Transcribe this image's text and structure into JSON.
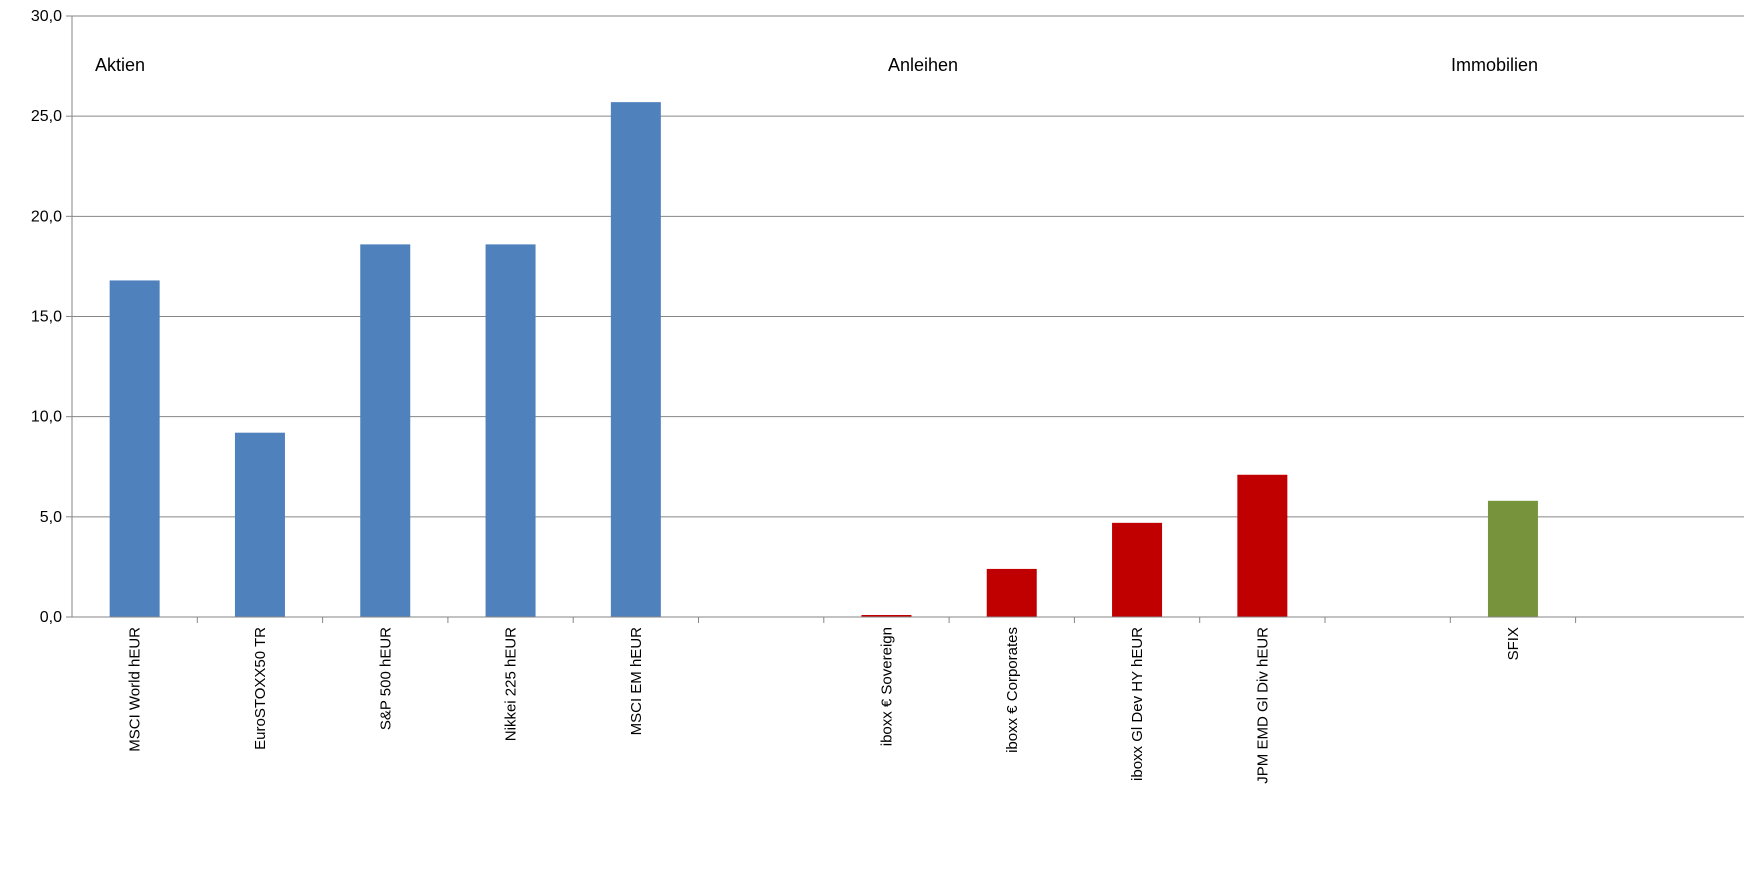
{
  "chart_data": {
    "type": "bar",
    "categories": [
      "MSCI World hEUR",
      "EuroSTOXX50 TR",
      "S&P 500 hEUR",
      "Nikkei 225 hEUR",
      "MSCI EM hEUR",
      "",
      "iboxx € Sovereign",
      "iboxx € Corporates",
      "iboxx Gl Dev HY hEUR",
      "JPM EMD Gl Div hEUR",
      "",
      "SFIX"
    ],
    "values": [
      16.8,
      9.2,
      18.6,
      18.6,
      25.7,
      null,
      0.1,
      2.4,
      4.7,
      7.1,
      null,
      5.8
    ],
    "colors": [
      "#4f81bd",
      "#4f81bd",
      "#4f81bd",
      "#4f81bd",
      "#4f81bd",
      null,
      "#c00000",
      "#c00000",
      "#c00000",
      "#c00000",
      null,
      "#77933c"
    ],
    "groups": [
      "Aktien",
      "Anleihen",
      "Immobilien"
    ],
    "yticks": [
      "0,0",
      "5,0",
      "10,0",
      "15,0",
      "20,0",
      "25,0",
      "30,0"
    ],
    "ylim": [
      0,
      30
    ],
    "grid": true,
    "title": "",
    "xlabel": "",
    "ylabel": ""
  }
}
